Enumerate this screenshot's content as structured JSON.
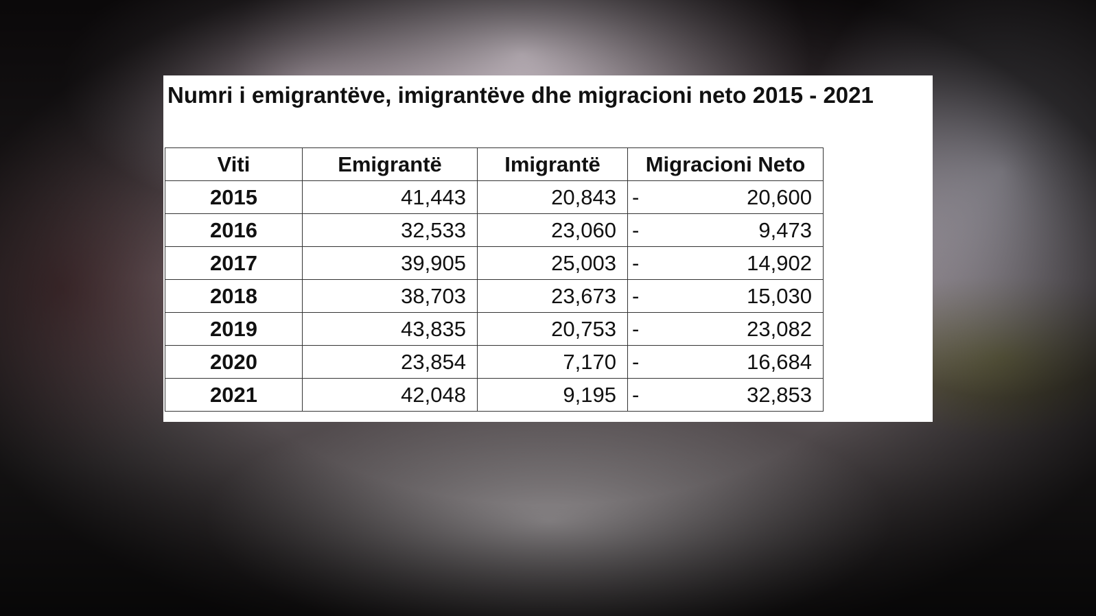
{
  "table": {
    "title": "Numri i emigrantëve, imigrantëve dhe migracioni neto 2015 - 2021",
    "headers": [
      "Viti",
      "Emigrantë",
      "Imigrantë",
      "Migracioni Neto"
    ],
    "rows": [
      {
        "year": "2015",
        "emigrants": "41,443",
        "immigrants": "20,843",
        "net_sign": "-",
        "net": "20,600"
      },
      {
        "year": "2016",
        "emigrants": "32,533",
        "immigrants": "23,060",
        "net_sign": "-",
        "net": "9,473"
      },
      {
        "year": "2017",
        "emigrants": "39,905",
        "immigrants": "25,003",
        "net_sign": "-",
        "net": "14,902"
      },
      {
        "year": "2018",
        "emigrants": "38,703",
        "immigrants": "23,673",
        "net_sign": "-",
        "net": "15,030"
      },
      {
        "year": "2019",
        "emigrants": "43,835",
        "immigrants": "20,753",
        "net_sign": "-",
        "net": "23,082"
      },
      {
        "year": "2020",
        "emigrants": "23,854",
        "immigrants": "7,170",
        "net_sign": "-",
        "net": "16,684"
      },
      {
        "year": "2021",
        "emigrants": "42,048",
        "immigrants": "9,195",
        "net_sign": "-",
        "net": "32,853"
      }
    ]
  }
}
